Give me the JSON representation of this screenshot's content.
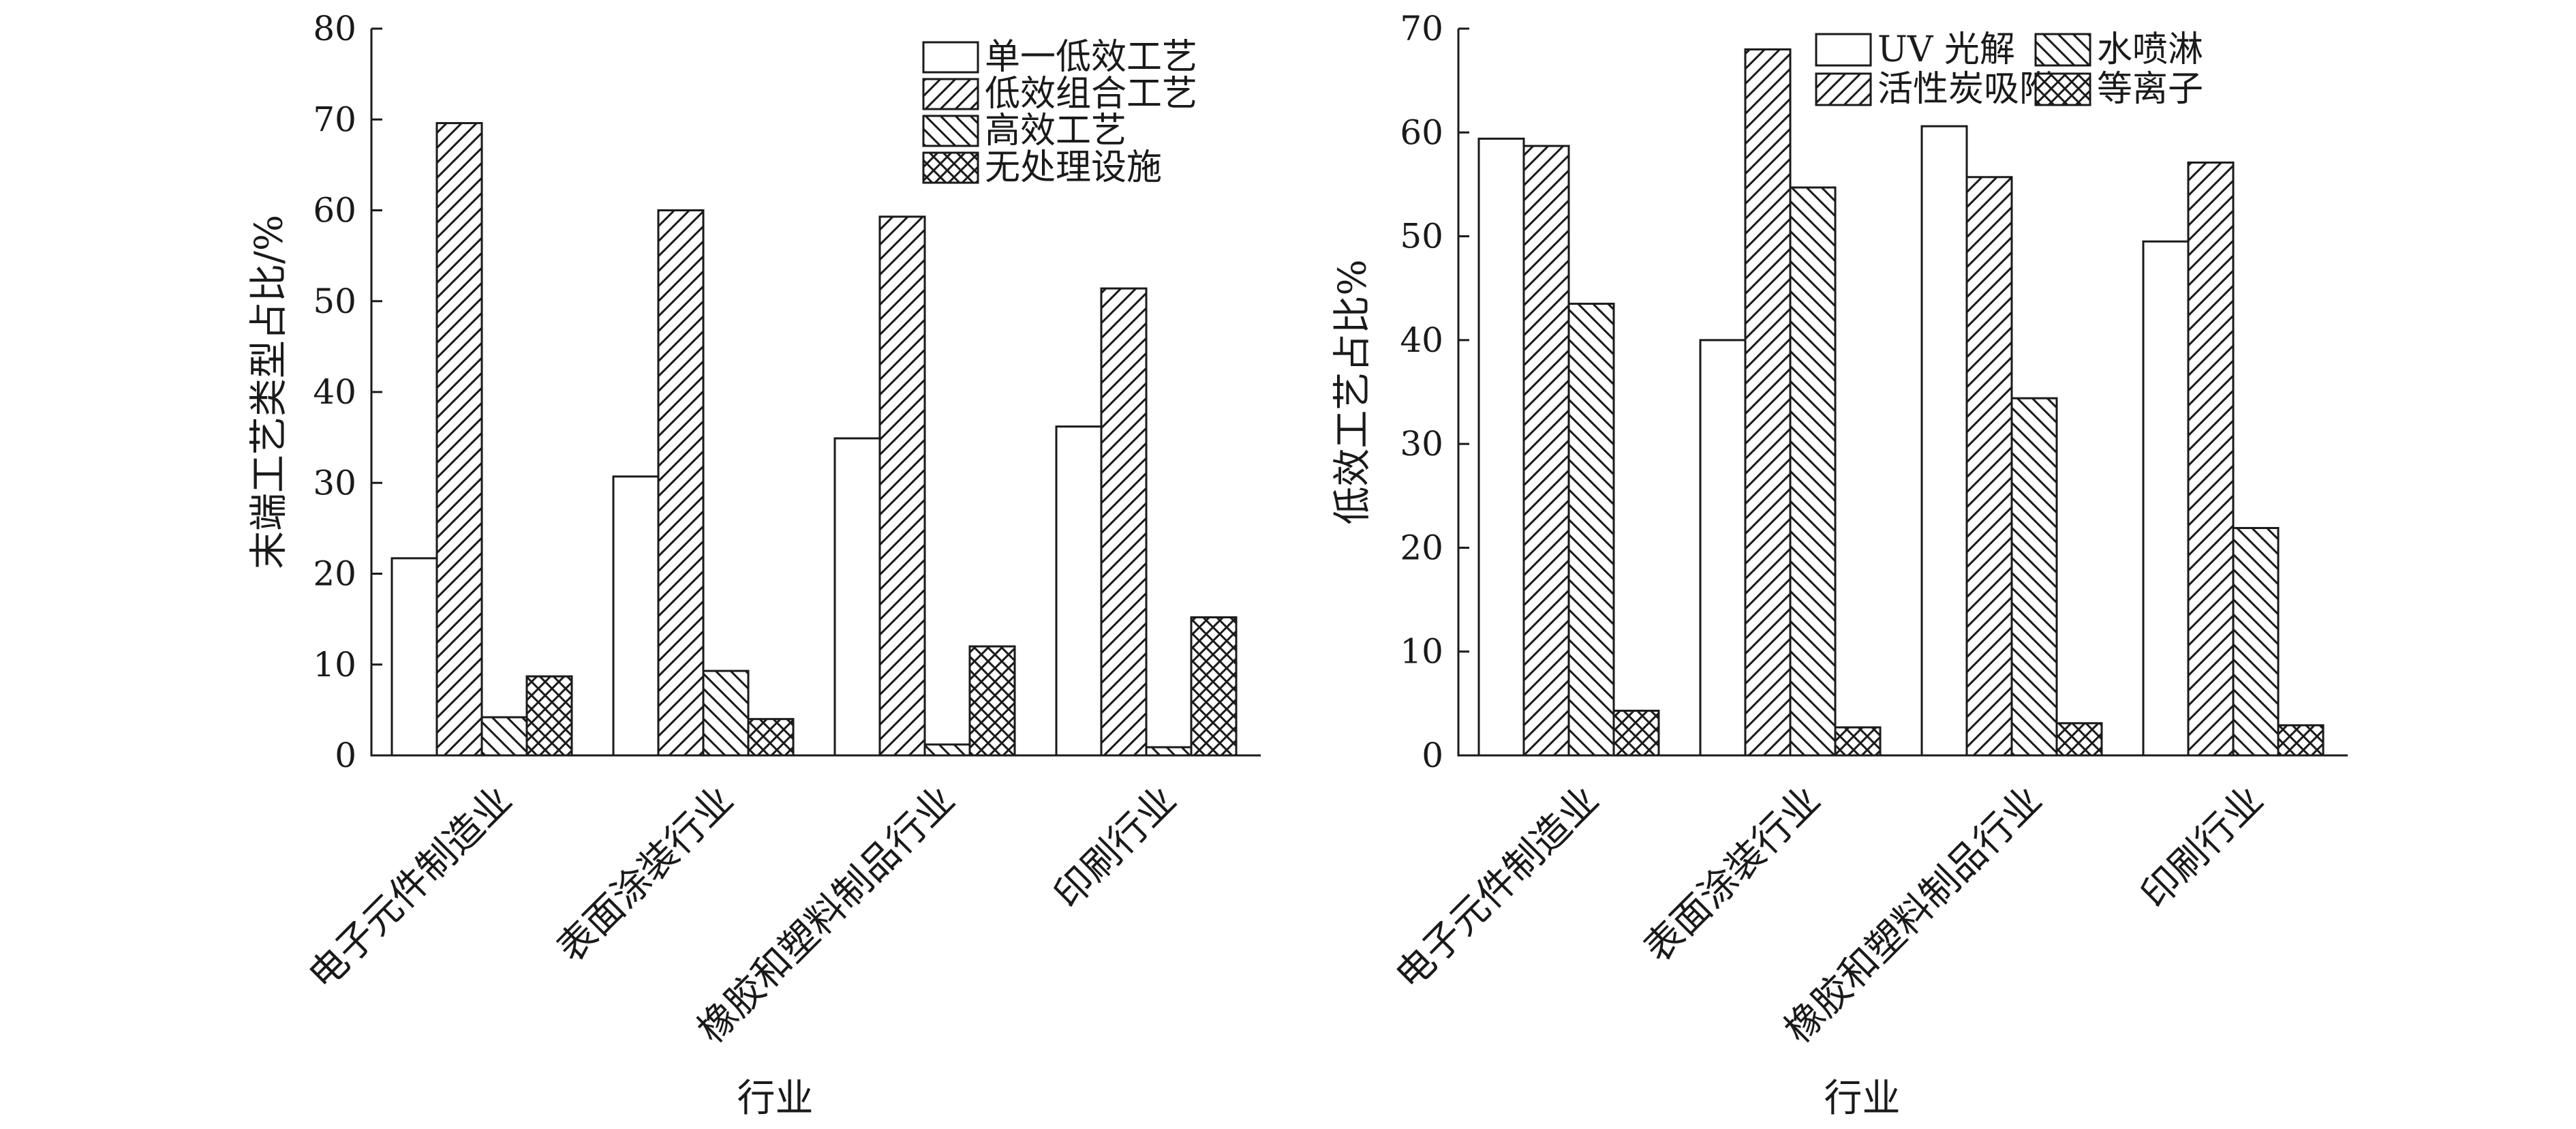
{
  "chart_data": [
    {
      "type": "bar",
      "title": "",
      "xlabel": "行业",
      "ylabel": "末端工艺类型占比/%",
      "ylim": [
        0,
        80
      ],
      "yticks": [
        0,
        10,
        20,
        30,
        40,
        50,
        60,
        70,
        80
      ],
      "categories": [
        "电子元件制造业",
        "表面涂装行业",
        "橡胶和塑料制品行业",
        "印刷行业"
      ],
      "legend_position": "top-right",
      "grid": false,
      "series": [
        {
          "name": "单一低效工艺",
          "pattern": "blank",
          "values": [
            21.7,
            30.7,
            34.9,
            36.2
          ]
        },
        {
          "name": "低效组合工艺",
          "pattern": "forward-hatch",
          "values": [
            69.6,
            60.0,
            59.3,
            51.4
          ]
        },
        {
          "name": "高效工艺",
          "pattern": "back-hatch",
          "values": [
            4.2,
            9.3,
            1.2,
            0.9
          ]
        },
        {
          "name": "无处理设施",
          "pattern": "cross-hatch",
          "values": [
            8.7,
            4.0,
            12.0,
            15.2
          ]
        }
      ]
    },
    {
      "type": "bar",
      "title": "",
      "xlabel": "行业",
      "ylabel": "低效工艺占比%",
      "ylim": [
        0,
        70
      ],
      "yticks": [
        0,
        10,
        20,
        30,
        40,
        50,
        60,
        70
      ],
      "categories": [
        "电子元件制造业",
        "表面涂装行业",
        "橡胶和塑料制品行业",
        "印刷行业"
      ],
      "legend_position": "top-right",
      "grid": false,
      "series": [
        {
          "name": "UV 光解",
          "pattern": "blank",
          "values": [
            59.4,
            40.0,
            60.6,
            49.5
          ]
        },
        {
          "name": "活性炭吸附",
          "pattern": "forward-hatch",
          "values": [
            58.7,
            68.0,
            55.7,
            57.1
          ]
        },
        {
          "name": "水喷淋",
          "pattern": "back-hatch",
          "values": [
            43.5,
            54.7,
            34.4,
            21.9
          ]
        },
        {
          "name": "等离子",
          "pattern": "cross-hatch",
          "values": [
            4.3,
            2.7,
            3.1,
            2.9
          ]
        }
      ]
    }
  ]
}
